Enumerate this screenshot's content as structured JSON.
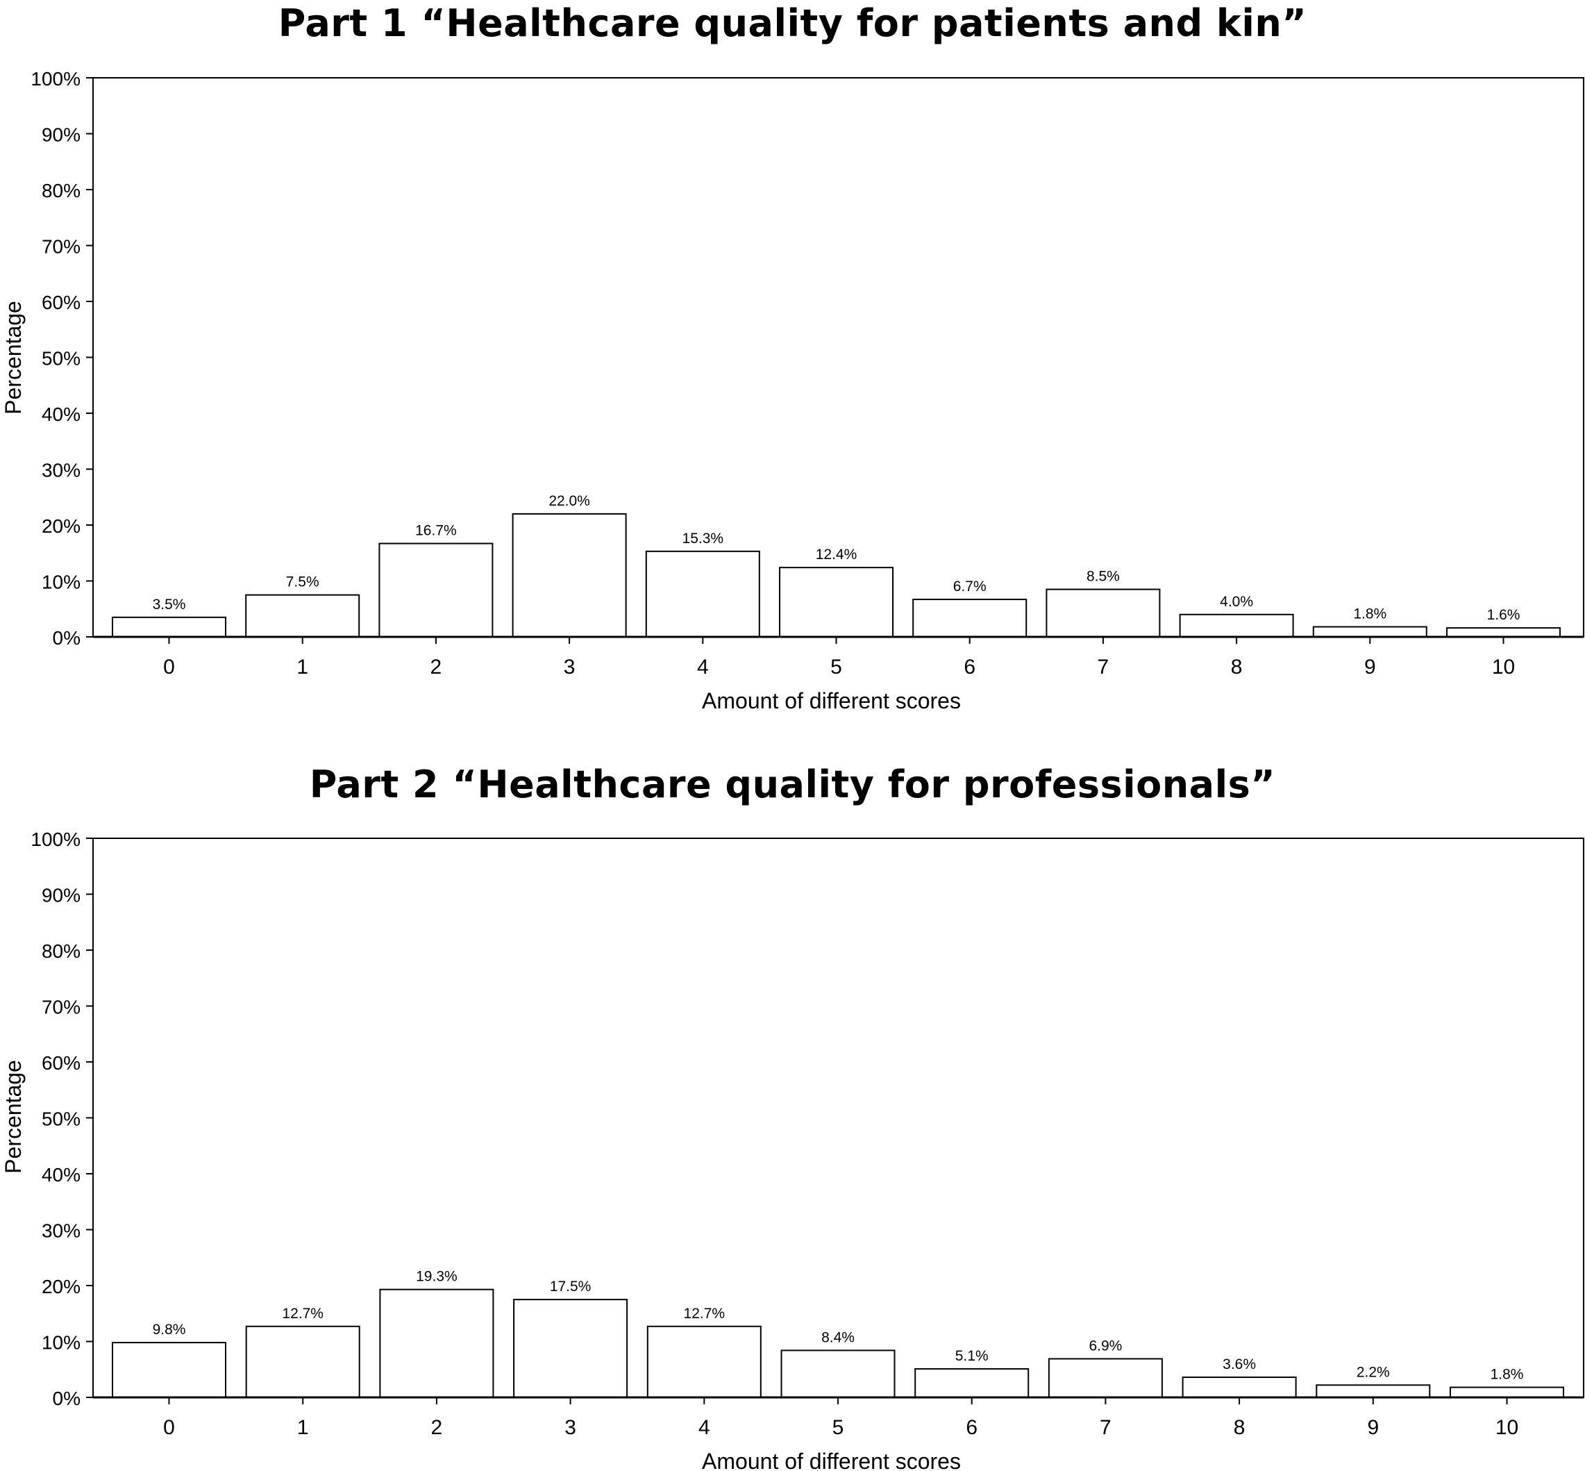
{
  "chart_data": [
    {
      "type": "bar",
      "title": "Part 1 “Healthcare quality for patients and kin”",
      "xlabel": "Amount of different scores",
      "ylabel": "Percentage",
      "categories": [
        "0",
        "1",
        "2",
        "3",
        "4",
        "5",
        "6",
        "7",
        "8",
        "9",
        "10"
      ],
      "values": [
        3.5,
        7.5,
        16.7,
        22.0,
        15.3,
        12.4,
        6.7,
        8.5,
        4.0,
        1.8,
        1.6
      ],
      "data_labels": [
        "3.5%",
        "7.5%",
        "16.7%",
        "22.0%",
        "15.3%",
        "12.4%",
        "6.7%",
        "8.5%",
        "4.0%",
        "1.8%",
        "1.6%"
      ],
      "yticks": [
        "0%",
        "10%",
        "20%",
        "30%",
        "40%",
        "50%",
        "60%",
        "70%",
        "80%",
        "90%",
        "100%"
      ],
      "ylim": [
        0,
        100
      ],
      "grid": false,
      "bar_fill": "#ffffff",
      "bar_stroke": "#000000"
    },
    {
      "type": "bar",
      "title": "Part 2 “Healthcare quality for professionals”",
      "xlabel": "Amount of different scores",
      "ylabel": "Percentage",
      "categories": [
        "0",
        "1",
        "2",
        "3",
        "4",
        "5",
        "6",
        "7",
        "8",
        "9",
        "10"
      ],
      "values": [
        9.8,
        12.7,
        19.3,
        17.5,
        12.7,
        8.4,
        5.1,
        6.9,
        3.6,
        2.2,
        1.8
      ],
      "data_labels": [
        "9.8%",
        "12.7%",
        "19.3%",
        "17.5%",
        "12.7%",
        "8.4%",
        "5.1%",
        "6.9%",
        "3.6%",
        "2.2%",
        "1.8%"
      ],
      "yticks": [
        "0%",
        "10%",
        "20%",
        "30%",
        "40%",
        "50%",
        "60%",
        "70%",
        "80%",
        "90%",
        "100%"
      ],
      "ylim": [
        0,
        100
      ],
      "grid": false,
      "bar_fill": "#ffffff",
      "bar_stroke": "#000000"
    }
  ]
}
